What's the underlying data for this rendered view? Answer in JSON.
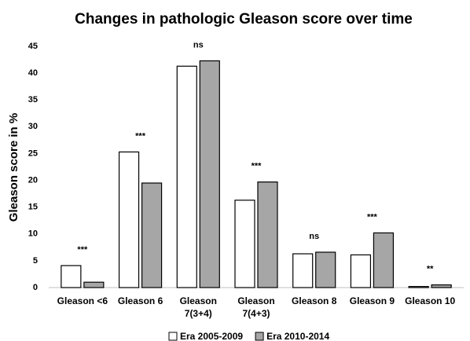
{
  "chart_data": {
    "type": "bar",
    "title": "Changes in pathologic Gleason score over time",
    "y_label": "Gleason score in %",
    "categories": [
      [
        "Gleason <6"
      ],
      [
        "Gleason 6"
      ],
      [
        "Gleason",
        "7(3+4)"
      ],
      [
        "Gleason",
        "7(4+3)"
      ],
      [
        "Gleason 8"
      ],
      [
        "Gleason 9"
      ],
      [
        "Gleason 10"
      ]
    ],
    "series": [
      {
        "name": "Era 2005-2009",
        "color": "#ffffff",
        "values": [
          4.1,
          25.3,
          41.3,
          16.3,
          6.3,
          6.1,
          0.2
        ]
      },
      {
        "name": "Era 2010-2014",
        "color": "#a6a6a6",
        "values": [
          1.0,
          19.5,
          42.3,
          19.7,
          6.6,
          10.2,
          0.5
        ]
      }
    ],
    "annotations": [
      "***",
      "***",
      "ns",
      "***",
      "ns",
      "***",
      "**"
    ],
    "ylim": [
      0,
      45
    ],
    "yticks": [
      0,
      5,
      10,
      15,
      20,
      25,
      30,
      35,
      40,
      45
    ],
    "grid": false,
    "legend": "bottom"
  }
}
